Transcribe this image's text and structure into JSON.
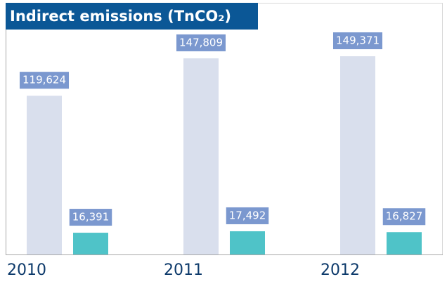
{
  "chart_data": {
    "type": "bar",
    "title": "Indirect emissions  (TnCO₂)",
    "categories": [
      "2010",
      "2011",
      "2012"
    ],
    "series": [
      {
        "color": "#d9dfed",
        "values": [
          119624,
          147809,
          149371
        ],
        "value_labels": [
          "119,624",
          "147,809",
          "149,371"
        ]
      },
      {
        "color": "#4fc3c8",
        "values": [
          16391,
          17492,
          16827
        ],
        "value_labels": [
          "16,391",
          "17,492",
          "16,827"
        ]
      }
    ],
    "label_color": "#7b98cf"
  }
}
